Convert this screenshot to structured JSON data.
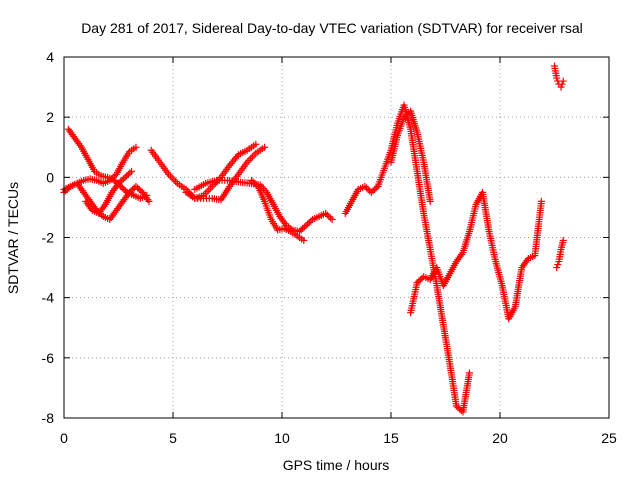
{
  "chart_data": {
    "type": "scatter",
    "title": "Day 281 of 2017, Sidereal Day-to-day VTEC variation (SDTVAR) for receiver rsal",
    "xlabel": "GPS time / hours",
    "ylabel": "SDTVAR / TECUs",
    "xlim": [
      0,
      25
    ],
    "ylim": [
      -8,
      4
    ],
    "xticks": [
      "0",
      "5",
      "10",
      "15",
      "20",
      "25"
    ],
    "yticks": [
      "-8",
      "-6",
      "-4",
      "-2",
      "0",
      "2",
      "4"
    ],
    "grid": true,
    "marker": "plus",
    "color": "#ff0000",
    "series": [
      {
        "x": [
          0.0,
          0.3,
          0.6,
          0.9,
          1.2,
          1.5,
          1.8,
          2.1,
          2.4,
          2.7,
          3.0,
          3.3,
          3.6,
          3.9
        ],
        "y": [
          -0.5,
          -0.3,
          -0.2,
          -0.5,
          -0.8,
          -1.1,
          -1.3,
          -1.4,
          -1.1,
          -0.8,
          -0.5,
          -0.3,
          -0.5,
          -0.8
        ]
      },
      {
        "x": [
          0.2,
          0.5,
          0.8,
          1.1,
          1.4,
          1.7,
          2.0,
          2.3,
          2.6,
          2.9,
          3.2,
          3.5,
          3.8
        ],
        "y": [
          1.6,
          1.3,
          1.0,
          0.6,
          0.2,
          0.05,
          0.0,
          -0.1,
          -0.3,
          -0.5,
          -0.6,
          -0.7,
          -0.6
        ]
      },
      {
        "x": [
          0.0,
          0.3,
          0.6,
          0.9,
          1.2,
          1.5,
          1.8,
          2.1,
          2.4,
          2.7,
          3.0,
          3.3
        ],
        "y": [
          -0.4,
          -0.3,
          -0.2,
          -0.1,
          -0.05,
          -0.1,
          -0.2,
          -0.1,
          0.1,
          0.5,
          0.85,
          1.0
        ]
      },
      {
        "x": [
          1.0,
          1.3,
          1.6,
          1.9,
          2.2,
          2.5,
          2.8,
          3.1
        ],
        "y": [
          -0.8,
          -1.1,
          -1.2,
          -0.9,
          -0.5,
          -0.2,
          0.0,
          0.2
        ]
      },
      {
        "x": [
          4.0,
          4.4,
          4.8,
          5.2,
          5.6,
          6.0,
          6.4,
          6.8,
          7.2,
          7.6,
          8.0,
          8.4,
          8.8
        ],
        "y": [
          0.9,
          0.5,
          0.1,
          -0.2,
          -0.4,
          -0.7,
          -0.6,
          -0.3,
          0.0,
          0.4,
          0.75,
          0.9,
          1.1
        ]
      },
      {
        "x": [
          5.6,
          6.0,
          6.4,
          6.8,
          7.2,
          7.6,
          8.0,
          8.4,
          8.8,
          9.2
        ],
        "y": [
          -0.5,
          -0.7,
          -0.7,
          -0.7,
          -0.75,
          -0.3,
          0.1,
          0.5,
          0.8,
          1.0
        ]
      },
      {
        "x": [
          6.0,
          6.5,
          7.0,
          7.5,
          8.0,
          8.5,
          9.0,
          9.3,
          9.6,
          9.9,
          10.2,
          10.5,
          10.8,
          11.1,
          11.4,
          11.7,
          12.0,
          12.3
        ],
        "y": [
          -0.4,
          -0.2,
          -0.1,
          -0.1,
          -0.15,
          -0.2,
          -0.25,
          -0.5,
          -0.9,
          -1.3,
          -1.6,
          -1.75,
          -1.8,
          -1.6,
          -1.4,
          -1.3,
          -1.2,
          -1.4
        ]
      },
      {
        "x": [
          8.6,
          8.9,
          9.2,
          9.5,
          9.8,
          10.1,
          10.4,
          10.7,
          11.0
        ],
        "y": [
          -0.1,
          -0.3,
          -0.8,
          -1.4,
          -1.75,
          -1.7,
          -1.8,
          -1.95,
          -2.1
        ]
      },
      {
        "x": [
          12.9,
          13.2,
          13.5,
          13.8,
          14.1,
          14.4,
          14.7,
          15.0,
          15.3,
          15.6,
          15.9,
          16.2,
          16.5,
          16.8,
          17.1,
          17.4,
          17.7,
          18.0,
          18.3,
          18.6
        ],
        "y": [
          -1.2,
          -0.8,
          -0.4,
          -0.3,
          -0.5,
          -0.3,
          0.3,
          0.9,
          1.8,
          2.4,
          1.6,
          0.2,
          -1.2,
          -2.4,
          -3.6,
          -4.9,
          -6.2,
          -7.6,
          -7.8,
          -6.5
        ]
      },
      {
        "x": [
          15.0,
          15.3,
          15.6,
          15.9,
          16.2,
          16.5,
          16.8
        ],
        "y": [
          0.5,
          1.4,
          2.0,
          2.2,
          1.5,
          0.5,
          -0.8
        ]
      },
      {
        "x": [
          15.9,
          16.2,
          16.5,
          16.8,
          17.1,
          17.4,
          17.7,
          18.0,
          18.3,
          18.6,
          18.9,
          19.2,
          19.5,
          19.8,
          20.1,
          20.4,
          20.7,
          21.0,
          21.3,
          21.6,
          21.9
        ],
        "y": [
          -4.5,
          -3.5,
          -3.3,
          -3.4,
          -3.0,
          -3.6,
          -3.2,
          -2.8,
          -2.5,
          -1.8,
          -0.9,
          -0.5,
          -1.8,
          -2.8,
          -3.6,
          -4.7,
          -4.3,
          -3.0,
          -2.7,
          -2.6,
          -0.8
        ]
      },
      {
        "x": [
          22.5,
          22.6,
          22.7,
          22.8,
          22.9
        ],
        "y": [
          3.7,
          3.3,
          3.1,
          3.0,
          3.2
        ]
      },
      {
        "x": [
          22.6,
          22.7,
          22.8,
          22.9
        ],
        "y": [
          -3.0,
          -2.8,
          -2.4,
          -2.1
        ]
      }
    ]
  }
}
